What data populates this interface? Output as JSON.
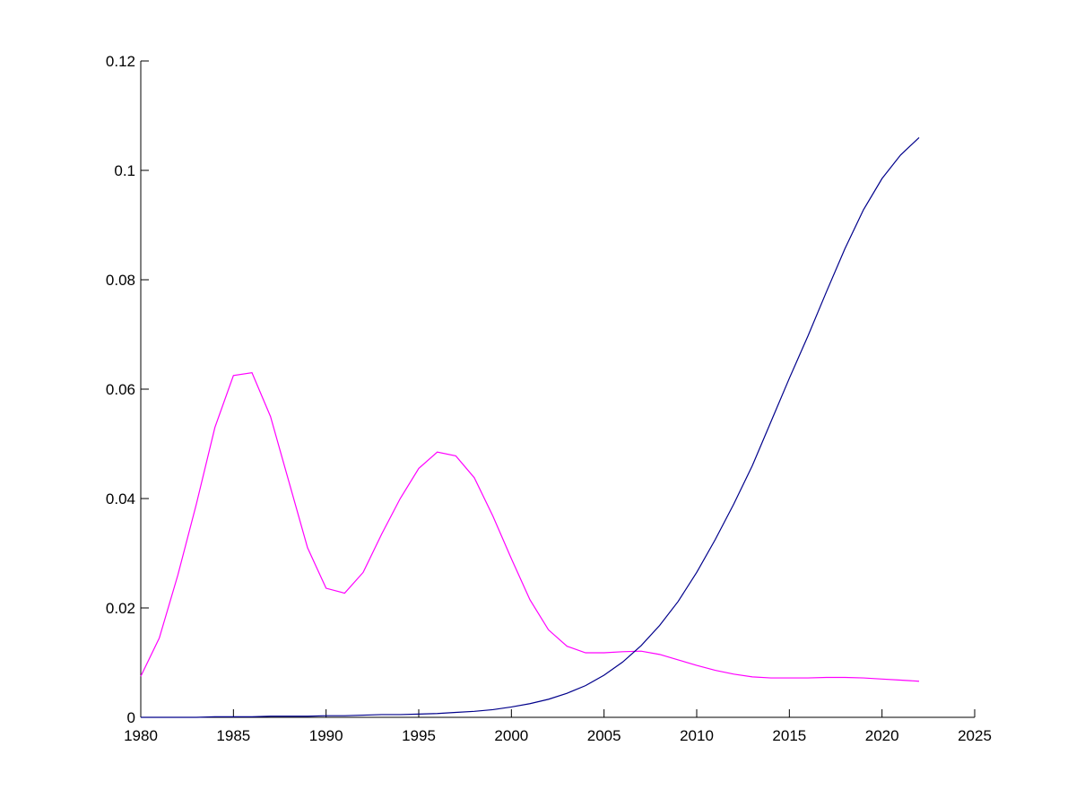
{
  "chart_data": {
    "type": "line",
    "x": [
      1980,
      1981,
      1982,
      1983,
      1984,
      1985,
      1986,
      1987,
      1988,
      1989,
      1990,
      1991,
      1992,
      1993,
      1994,
      1995,
      1996,
      1997,
      1998,
      1999,
      2000,
      2001,
      2002,
      2003,
      2004,
      2005,
      2006,
      2007,
      2008,
      2009,
      2010,
      2011,
      2012,
      2013,
      2014,
      2015,
      2016,
      2017,
      2018,
      2019,
      2020,
      2021,
      2022
    ],
    "series": [
      {
        "color": "#ff00ff",
        "values": [
          0.0075,
          0.0145,
          0.026,
          0.039,
          0.053,
          0.0625,
          0.063,
          0.055,
          0.043,
          0.031,
          0.0236,
          0.0227,
          0.0265,
          0.0335,
          0.04,
          0.0455,
          0.0485,
          0.0478,
          0.0438,
          0.0368,
          0.029,
          0.0215,
          0.016,
          0.013,
          0.0118,
          0.0118,
          0.012,
          0.0121,
          0.0115,
          0.0105,
          0.0095,
          0.0086,
          0.0079,
          0.0074,
          0.0072,
          0.0072,
          0.0072,
          0.0073,
          0.0073,
          0.0072,
          0.007,
          0.0068,
          0.0066
        ]
      },
      {
        "color": "#00008b",
        "values": [
          0,
          0,
          0,
          0,
          0.0001,
          0.0001,
          0.0001,
          0.0002,
          0.0002,
          0.0002,
          0.0003,
          0.0003,
          0.0004,
          0.0005,
          0.0005,
          0.0006,
          0.0007,
          0.0009,
          0.0011,
          0.0014,
          0.0019,
          0.0025,
          0.0033,
          0.0044,
          0.0058,
          0.0077,
          0.0101,
          0.0131,
          0.0168,
          0.0212,
          0.0265,
          0.0325,
          0.039,
          0.046,
          0.054,
          0.062,
          0.0697,
          0.0778,
          0.0857,
          0.0928,
          0.0985,
          0.1028,
          0.106
        ]
      }
    ],
    "xlim": [
      1980,
      2025
    ],
    "xticks": [
      1980,
      1985,
      1990,
      1995,
      2000,
      2005,
      2010,
      2015,
      2020,
      2025
    ],
    "ylim": [
      0,
      0.12
    ],
    "yticks": [
      0,
      0.02,
      0.04,
      0.06,
      0.08,
      0.1,
      0.12
    ]
  }
}
